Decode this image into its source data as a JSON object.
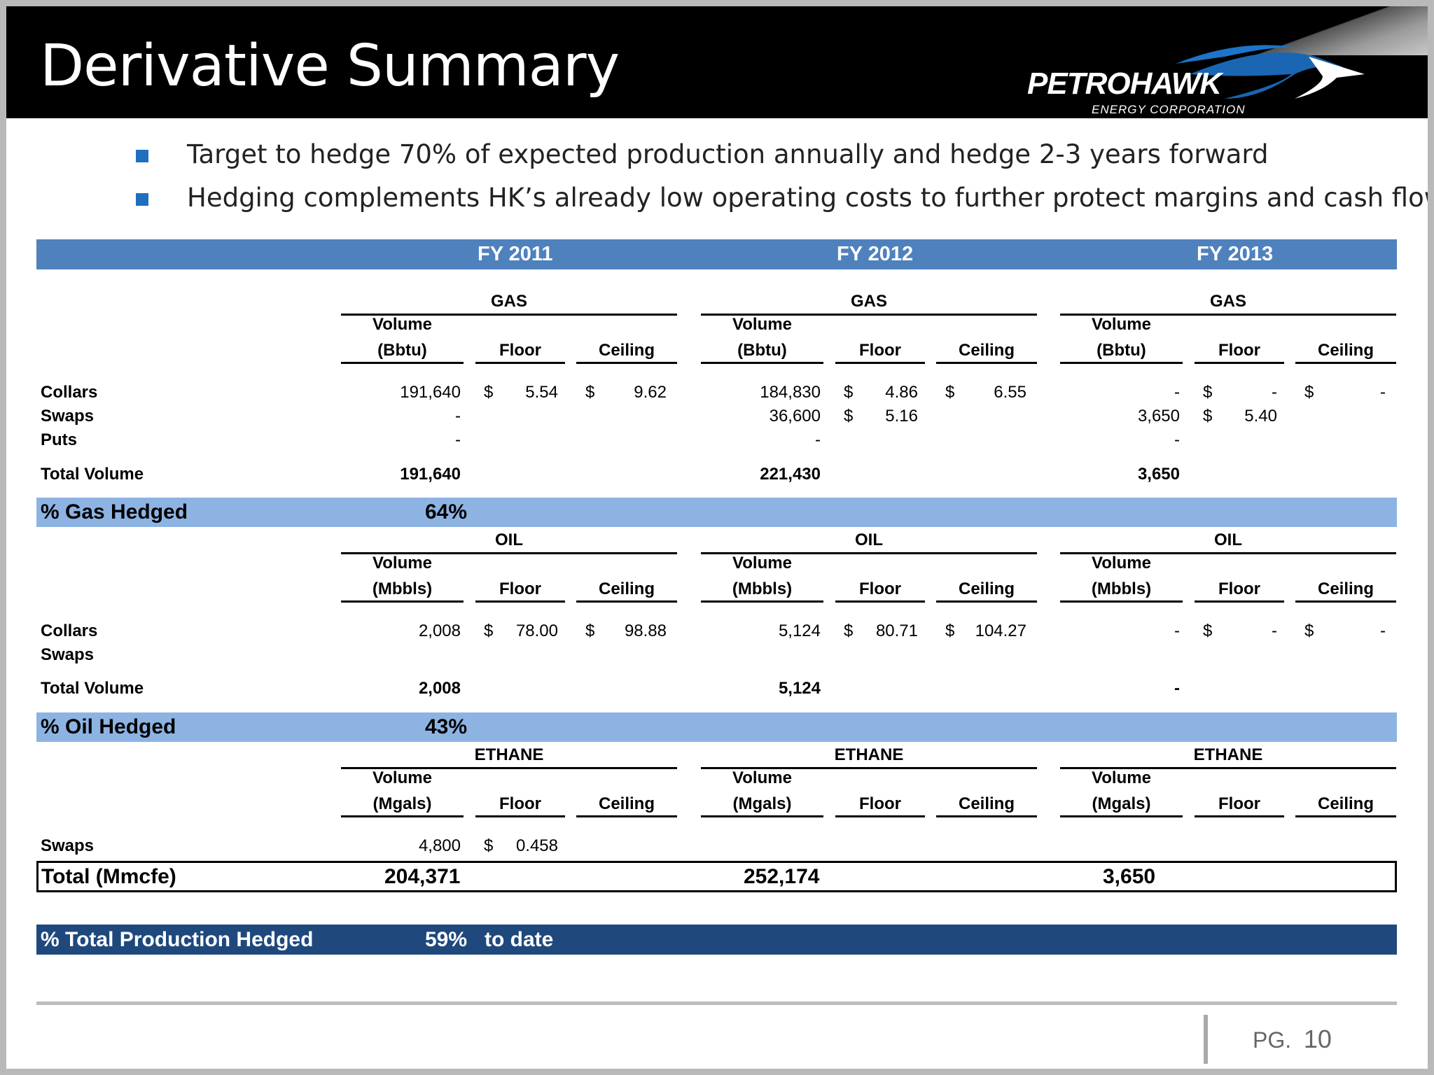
{
  "title": "Derivative Summary",
  "logo": {
    "word": "PETROHAWK",
    "sub": "ENERGY CORPORATION"
  },
  "bullets": [
    "Target to hedge 70% of expected production annually and hedge 2-3 years forward",
    "Hedging complements HK’s already low operating costs to further protect margins and cash flow"
  ],
  "years": [
    "FY 2011",
    "FY 2012",
    "FY 2013"
  ],
  "gas": {
    "section": "GAS",
    "vol_top": "Volume",
    "vol_unit": "(Bbtu)",
    "floor": "Floor",
    "ceiling": "Ceiling",
    "rows": [
      {
        "label": "Collars",
        "y1": [
          "191,640",
          "$",
          "5.54",
          "$",
          "9.62"
        ],
        "y2": [
          "184,830",
          "$",
          "4.86",
          "$",
          "6.55"
        ],
        "y3": [
          "-",
          "$",
          "-",
          "$",
          "-"
        ]
      },
      {
        "label": "Swaps",
        "y1": [
          "-",
          "",
          "",
          "",
          ""
        ],
        "y2": [
          "36,600",
          "$",
          "5.16",
          "",
          ""
        ],
        "y3": [
          "3,650",
          "$",
          "5.40",
          "",
          ""
        ]
      },
      {
        "label": "Puts",
        "y1": [
          "-",
          "",
          "",
          "",
          ""
        ],
        "y2": [
          "-",
          "",
          "",
          "",
          ""
        ],
        "y3": [
          "-",
          "",
          "",
          "",
          ""
        ]
      }
    ],
    "total_label": "Total Volume",
    "totals": [
      "191,640",
      "221,430",
      "3,650"
    ],
    "hedged_label": "% Gas Hedged",
    "hedged_pct": "64%"
  },
  "oil": {
    "section": "OIL",
    "vol_top": "Volume",
    "vol_unit": "(Mbbls)",
    "floor": "Floor",
    "ceiling": "Ceiling",
    "rows": [
      {
        "label": "Collars",
        "y1": [
          "2,008",
          "$",
          "78.00",
          "$",
          "98.88"
        ],
        "y2": [
          "5,124",
          "$",
          "80.71",
          "$",
          "104.27"
        ],
        "y3": [
          "-",
          "$",
          "-",
          "$",
          "-"
        ]
      },
      {
        "label": "Swaps",
        "y1": [
          "",
          "",
          "",
          "",
          ""
        ],
        "y2": [
          "",
          "",
          "",
          "",
          ""
        ],
        "y3": [
          "",
          "",
          "",
          "",
          ""
        ]
      }
    ],
    "total_label": "Total Volume",
    "totals": [
      "2,008",
      "5,124",
      "-"
    ],
    "hedged_label": "% Oil Hedged",
    "hedged_pct": "43%"
  },
  "ethane": {
    "section": "ETHANE",
    "vol_top": "Volume",
    "vol_unit": "(Mgals)",
    "floor": "Floor",
    "ceiling": "Ceiling",
    "rows": [
      {
        "label": "Swaps",
        "y1": [
          "4,800",
          "$",
          "0.458",
          "",
          ""
        ],
        "y2": [
          "",
          "",
          "",
          "",
          ""
        ],
        "y3": [
          "",
          "",
          "",
          "",
          ""
        ]
      }
    ]
  },
  "total_mmcfe": {
    "label": "Total (Mmcfe)",
    "values": [
      "204,371",
      "252,174",
      "3,650"
    ]
  },
  "production": {
    "label": "% Total Production Hedged",
    "pct": "59%",
    "suffix": "to date"
  },
  "page": {
    "prefix": "PG.",
    "number": "10"
  }
}
